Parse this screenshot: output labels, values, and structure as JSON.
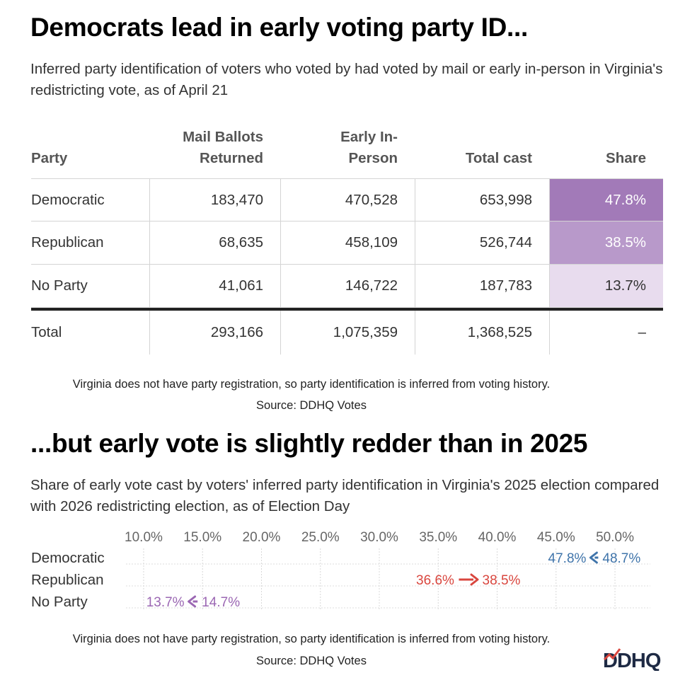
{
  "section1": {
    "title": "Democrats lead in early voting party ID...",
    "subtitle": "Inferred party identification of voters who voted by had voted by mail or early in-person in Virginia's redistricting vote, as of April 21",
    "note": "Virginia does not have party registration, so party identification is inferred from voting history.",
    "source": "Source: DDHQ Votes"
  },
  "section2": {
    "title": "...but early vote is slightly redder than in 2025",
    "subtitle": "Share of early vote cast by voters' inferred party identification in Virginia's 2025 election compared with 2026 redistricting election, as of Election Day",
    "note": "Virginia does not have party registration, so party identification is inferred from voting history.",
    "source": "Source: DDHQ Votes"
  },
  "logo_text": "DDHQ",
  "colors": {
    "dem": "#3f74aa",
    "rep": "#d9463e",
    "other": "#9b67b3",
    "share_dark": "#a27ab8",
    "share_mid": "#b899ca",
    "share_light": "#e8dcee"
  },
  "chart_data": [
    {
      "type": "table",
      "columns": [
        "Party",
        "Mail Ballots Returned",
        "Early In-Person",
        "Total cast",
        "Share"
      ],
      "rows": [
        [
          "Democratic",
          "183,470",
          "470,528",
          "653,998",
          "47.8%"
        ],
        [
          "Republican",
          "68,635",
          "458,109",
          "526,744",
          "38.5%"
        ],
        [
          "No Party",
          "41,061",
          "146,722",
          "187,783",
          "13.7%"
        ]
      ],
      "total_row": [
        "Total",
        "293,166",
        "1,075,359",
        "1,368,525",
        "–"
      ]
    },
    {
      "type": "scatter",
      "title": "...but early vote is slightly redder than in 2025",
      "x_ticks": [
        10,
        15,
        20,
        25,
        30,
        35,
        40,
        45,
        50
      ],
      "x_tick_labels": [
        "10.0%",
        "15.0%",
        "20.0%",
        "25.0%",
        "30.0%",
        "35.0%",
        "40.0%",
        "45.0%",
        "50.0%"
      ],
      "xlim": [
        8.5,
        53
      ],
      "categories": [
        "Democratic",
        "Republican",
        "No Party"
      ],
      "series": [
        {
          "name": "2025",
          "values": [
            48.7,
            36.6,
            14.7
          ]
        },
        {
          "name": "2026",
          "values": [
            47.8,
            38.5,
            13.7
          ]
        }
      ],
      "labels_2025": [
        "48.7%",
        "36.6%",
        "14.7%"
      ],
      "labels_2026": [
        "47.8%",
        "38.5%",
        "13.7%"
      ]
    }
  ]
}
